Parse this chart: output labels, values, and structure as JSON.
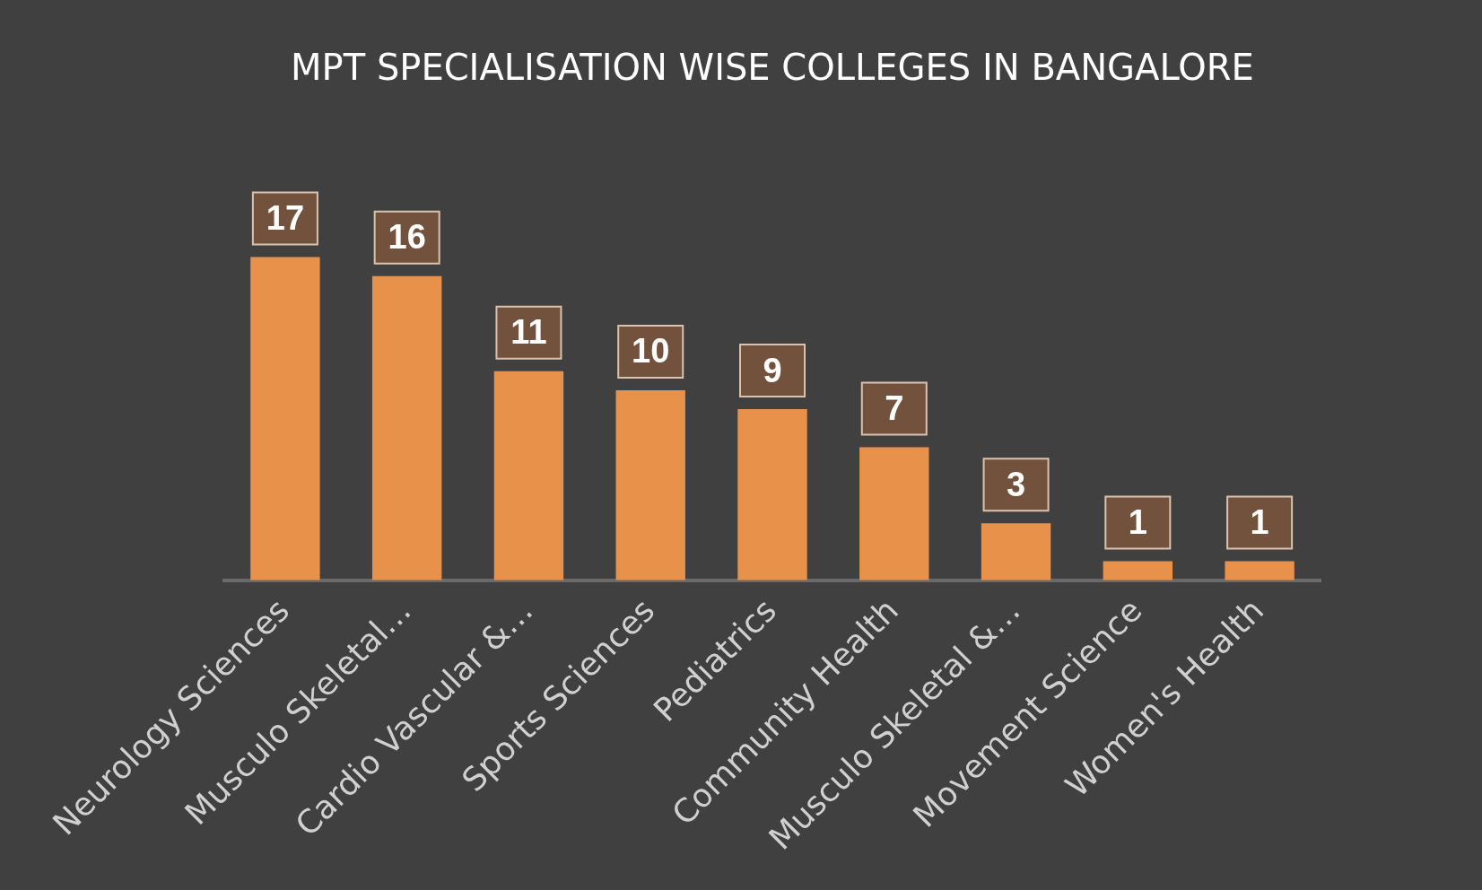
{
  "chart_data": {
    "type": "bar",
    "title": "MPT SPECIALISATION WISE COLLEGES IN BANGALORE",
    "categories": [
      "Neurology Sciences",
      "Musculo Skeletal…",
      "Cardio Vascular &…",
      "Sports Sciences",
      "Pediatrics",
      "Community Health",
      "Musculo Skeletal &…",
      "Movement Science",
      "Women's Health"
    ],
    "values": [
      17,
      16,
      11,
      10,
      9,
      7,
      3,
      1,
      1
    ],
    "color": "#e8914a",
    "data_labels": true,
    "grid": false,
    "legend": false
  }
}
